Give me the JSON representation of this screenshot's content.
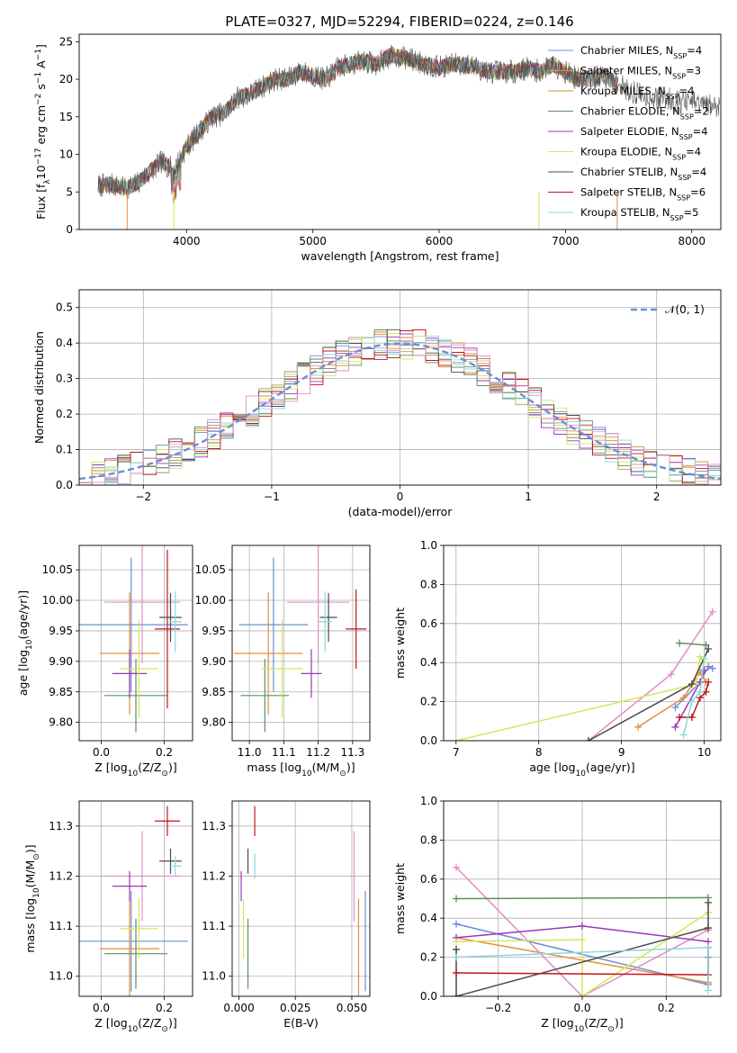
{
  "figure": {
    "title": "PLATE=0327, MJD=52294, FIBERID=0224, z=0.146"
  },
  "colors": {
    "data": "#555555",
    "legend_normal": "#6b8fd6",
    "grid": "#b0b0b0"
  },
  "chart_data": [
    {
      "id": "spectrum",
      "type": "line",
      "xlabel": "wavelength [Angstrom, rest frame]",
      "ylabel_parts": [
        "Flux [f",
        "λ",
        "10",
        "−17",
        " erg cm",
        "−2",
        " s",
        "−1",
        " A",
        "−1",
        "]"
      ],
      "xlim": [
        3150,
        8230
      ],
      "ylim": [
        0,
        26
      ],
      "xticks": [
        4000,
        5000,
        6000,
        7000,
        8000
      ],
      "yticks": [
        0,
        5,
        10,
        15,
        20,
        25
      ],
      "grid": false,
      "legend_position": "upper-right",
      "data_trace": {
        "x": [
          3300,
          3400,
          3500,
          3600,
          3700,
          3800,
          3900,
          4000,
          4100,
          4200,
          4300,
          4400,
          4500,
          4600,
          4700,
          4800,
          4900,
          5000,
          5100,
          5200,
          5300,
          5400,
          5500,
          5600,
          5700,
          5800,
          5900,
          6000,
          6100,
          6200,
          6300,
          6400,
          6500,
          6600,
          6700,
          6800,
          6900,
          7000,
          7100,
          7200,
          7300,
          7400,
          7500,
          7600,
          7700,
          7800,
          7900,
          8000,
          8100,
          8200
        ],
        "y": [
          5.8,
          6.0,
          5.5,
          6.0,
          7.5,
          9.0,
          8.0,
          11.0,
          13.0,
          15.0,
          15.5,
          17.5,
          18.0,
          19.0,
          20.0,
          20.0,
          21.0,
          20.5,
          20.0,
          21.5,
          22.0,
          22.5,
          22.0,
          23.0,
          23.0,
          22.5,
          22.0,
          21.5,
          22.0,
          22.0,
          21.5,
          21.0,
          21.0,
          21.0,
          21.5,
          21.0,
          22.0,
          21.0,
          20.0,
          20.0,
          20.5,
          19.5,
          18.5,
          18.0,
          17.5,
          17.5,
          17.0,
          17.0,
          16.5,
          16.5
        ]
      },
      "series": [
        {
          "name": "Chabrier MILES",
          "nssp": "4",
          "color": "#6b8fd6"
        },
        {
          "name": "Salpeter MILES",
          "nssp": "3",
          "color": "#e68c3c"
        },
        {
          "name": "Kroupa MILES",
          "nssp": "4",
          "color": "#c98f2e"
        },
        {
          "name": "Chabrier ELODIE",
          "nssp": "2",
          "color": "#5e8f5e"
        },
        {
          "name": "Salpeter ELODIE",
          "nssp": "4",
          "color": "#9b37b8"
        },
        {
          "name": "Kroupa ELODIE",
          "nssp": "4",
          "color": "#d4e85a"
        },
        {
          "name": "Chabrier STELIB",
          "nssp": "4",
          "color": "#4a4a4a"
        },
        {
          "name": "Salpeter STELIB",
          "nssp": "6",
          "color": "#c0151a"
        },
        {
          "name": "Kroupa STELIB",
          "nssp": "5",
          "color": "#8bd8dd"
        }
      ]
    },
    {
      "id": "residuals",
      "type": "line",
      "xlabel": "(data-model)/error",
      "ylabel": "Normed distribution",
      "xlim": [
        -2.5,
        2.5
      ],
      "ylim": [
        0,
        0.55
      ],
      "xticks": [
        -2,
        -1,
        0,
        1,
        2
      ],
      "xtick_labels": [
        "−2",
        "−1",
        "0",
        "1",
        "2"
      ],
      "yticks": [
        0.0,
        0.1,
        0.2,
        0.3,
        0.4,
        0.5
      ],
      "ytick_labels": [
        "0.0",
        "0.1",
        "0.2",
        "0.3",
        "0.4",
        "0.5"
      ],
      "grid": true,
      "legend_position": "upper-right",
      "legend_label": "𝒩(0, 1)",
      "bin_width": 0.1
    },
    {
      "id": "age_vs_z",
      "type": "scatter",
      "xlabel_parts": [
        "Z [log",
        "10",
        "(Z/Z",
        "⊙",
        ")]"
      ],
      "ylabel_parts": [
        "age  [log",
        "10",
        "(age/yr)]"
      ],
      "xlim": [
        -0.07,
        0.29
      ],
      "ylim": [
        9.77,
        10.09
      ],
      "xticks": [
        0.0,
        0.2
      ],
      "xtick_labels": [
        "0.0",
        "0.2"
      ],
      "yticks": [
        9.8,
        9.85,
        9.9,
        9.95,
        10.0,
        10.05
      ],
      "ytick_labels": [
        "9.80",
        "9.85",
        "9.90",
        "9.95",
        "10.00",
        "10.05"
      ],
      "grid": true,
      "points": [
        {
          "x": 0.095,
          "y": 9.96,
          "xerr": 0.18,
          "yerr": 0.11,
          "color": "#6b8fd6"
        },
        {
          "x": 0.09,
          "y": 9.913,
          "xerr": 0.095,
          "yerr": 0.1,
          "color": "#e68c3c"
        },
        {
          "x": 0.13,
          "y": 9.997,
          "xerr": 0.12,
          "yerr": 0.1,
          "color": "#e08fc4"
        },
        {
          "x": 0.11,
          "y": 9.844,
          "xerr": 0.1,
          "yerr": 0.06,
          "color": "#5e8f5e"
        },
        {
          "x": 0.09,
          "y": 9.88,
          "xerr": 0.055,
          "yerr": 0.04,
          "color": "#9b37b8"
        },
        {
          "x": 0.12,
          "y": 9.888,
          "xerr": 0.06,
          "yerr": 0.08,
          "color": "#d4e85a"
        },
        {
          "x": 0.22,
          "y": 9.972,
          "xerr": 0.035,
          "yerr": 0.04,
          "color": "#4a4a4a"
        },
        {
          "x": 0.21,
          "y": 9.953,
          "xerr": 0.04,
          "yerr": 0.13,
          "color": "#c0151a"
        },
        {
          "x": 0.235,
          "y": 9.965,
          "xerr": 0.02,
          "yerr": 0.05,
          "color": "#8bd8dd"
        }
      ]
    },
    {
      "id": "age_vs_mass",
      "type": "scatter",
      "xlabel_parts": [
        "mass [log",
        "10",
        "(M/M",
        "⊙",
        ")]"
      ],
      "ylabel": "",
      "xlim": [
        10.95,
        11.35
      ],
      "ylim": [
        9.77,
        10.09
      ],
      "xticks": [
        11.0,
        11.1,
        11.2,
        11.3
      ],
      "xtick_labels": [
        "11.0",
        "11.1",
        "11.2",
        "11.3"
      ],
      "yticks": [
        9.8,
        9.85,
        9.9,
        9.95,
        10.0,
        10.05
      ],
      "ytick_labels": [
        "9.80",
        "9.85",
        "9.90",
        "9.95",
        "10.00",
        "10.05"
      ],
      "grid": true,
      "points": [
        {
          "x": 11.07,
          "y": 9.96,
          "xerr": 0.1,
          "yerr": 0.11,
          "color": "#6b8fd6"
        },
        {
          "x": 11.055,
          "y": 9.913,
          "xerr": 0.1,
          "yerr": 0.1,
          "color": "#e68c3c"
        },
        {
          "x": 11.2,
          "y": 9.997,
          "xerr": 0.09,
          "yerr": 0.1,
          "color": "#e08fc4"
        },
        {
          "x": 11.045,
          "y": 9.844,
          "xerr": 0.07,
          "yerr": 0.06,
          "color": "#5e8f5e"
        },
        {
          "x": 11.18,
          "y": 9.88,
          "xerr": 0.03,
          "yerr": 0.04,
          "color": "#9b37b8"
        },
        {
          "x": 11.095,
          "y": 9.888,
          "xerr": 0.06,
          "yerr": 0.08,
          "color": "#d4e85a"
        },
        {
          "x": 11.23,
          "y": 9.972,
          "xerr": 0.025,
          "yerr": 0.04,
          "color": "#4a4a4a"
        },
        {
          "x": 11.31,
          "y": 9.953,
          "xerr": 0.03,
          "yerr": 0.065,
          "color": "#c0151a"
        },
        {
          "x": 11.22,
          "y": 9.965,
          "xerr": 0.02,
          "yerr": 0.05,
          "color": "#8bd8dd"
        }
      ]
    },
    {
      "id": "weight_vs_age",
      "type": "line",
      "xlabel_parts": [
        "age  [log",
        "10",
        "(age/yr)]"
      ],
      "ylabel": "mass weight",
      "xlim": [
        6.85,
        10.2
      ],
      "ylim": [
        0,
        1
      ],
      "xticks": [
        7,
        8,
        9,
        10
      ],
      "xtick_labels": [
        "7",
        "8",
        "9",
        "10"
      ],
      "yticks": [
        0.0,
        0.2,
        0.4,
        0.6,
        0.8,
        1.0
      ],
      "ytick_labels": [
        "0.0",
        "0.2",
        "0.4",
        "0.6",
        "0.8",
        "1.0"
      ],
      "grid": true,
      "series": [
        {
          "color": "#6b8fd6",
          "x": [
            9.65,
            9.95,
            10.05,
            10.1
          ],
          "y": [
            0.17,
            0.3,
            0.38,
            0.37
          ]
        },
        {
          "color": "#e68c3c",
          "x": [
            9.2,
            9.75,
            9.95,
            10.02
          ],
          "y": [
            0.07,
            0.22,
            0.35,
            0.3
          ]
        },
        {
          "color": "#e08fc4",
          "x": [
            8.6,
            9.6,
            10.1
          ],
          "y": [
            0.0,
            0.34,
            0.66
          ]
        },
        {
          "color": "#5e8f5e",
          "x": [
            9.7,
            10.02
          ],
          "y": [
            0.5,
            0.49
          ]
        },
        {
          "color": "#9b37b8",
          "x": [
            9.65,
            9.95,
            10.0
          ],
          "y": [
            0.07,
            0.3,
            0.36
          ]
        },
        {
          "color": "#d4e85a",
          "x": [
            7.0,
            9.9,
            9.95,
            10.0
          ],
          "y": [
            0.0,
            0.29,
            0.43,
            0.4
          ]
        },
        {
          "color": "#4a4a4a",
          "x": [
            8.6,
            9.85,
            10.05
          ],
          "y": [
            0.0,
            0.29,
            0.47
          ]
        },
        {
          "color": "#c0151a",
          "x": [
            9.7,
            9.85,
            9.95,
            10.02,
            10.05
          ],
          "y": [
            0.12,
            0.12,
            0.22,
            0.25,
            0.3
          ]
        },
        {
          "color": "#8bd8dd",
          "x": [
            9.75,
            9.85,
            9.95,
            10.0
          ],
          "y": [
            0.03,
            0.2,
            0.25,
            0.42
          ]
        }
      ]
    },
    {
      "id": "mass_vs_z",
      "type": "scatter",
      "xlabel_parts": [
        "Z [log",
        "10",
        "(Z/Z",
        "⊙",
        ")]"
      ],
      "ylabel_parts": [
        "mass [log",
        "10",
        "(M/M",
        "⊙",
        ")]"
      ],
      "xlim": [
        -0.07,
        0.29
      ],
      "ylim": [
        10.96,
        11.35
      ],
      "xticks": [
        0.0,
        0.2
      ],
      "xtick_labels": [
        "0.0",
        "0.2"
      ],
      "yticks": [
        11.0,
        11.1,
        11.2,
        11.3
      ],
      "ytick_labels": [
        "11.0",
        "11.1",
        "11.2",
        "11.3"
      ],
      "grid": true,
      "points": [
        {
          "x": 0.095,
          "y": 11.07,
          "xerr": 0.18,
          "yerr": 0.1,
          "color": "#6b8fd6"
        },
        {
          "x": 0.09,
          "y": 11.055,
          "xerr": 0.095,
          "yerr": 0.1,
          "color": "#e68c3c"
        },
        {
          "x": 0.13,
          "y": 11.2,
          "xerr": 0.12,
          "yerr": 0.09,
          "color": "#e08fc4"
        },
        {
          "x": 0.11,
          "y": 11.045,
          "xerr": 0.1,
          "yerr": 0.07,
          "color": "#5e8f5e"
        },
        {
          "x": 0.09,
          "y": 11.18,
          "xerr": 0.055,
          "yerr": 0.03,
          "color": "#9b37b8"
        },
        {
          "x": 0.12,
          "y": 11.095,
          "xerr": 0.06,
          "yerr": 0.06,
          "color": "#d4e85a"
        },
        {
          "x": 0.22,
          "y": 11.23,
          "xerr": 0.035,
          "yerr": 0.025,
          "color": "#4a4a4a"
        },
        {
          "x": 0.21,
          "y": 11.31,
          "xerr": 0.04,
          "yerr": 0.03,
          "color": "#c0151a"
        },
        {
          "x": 0.235,
          "y": 11.22,
          "xerr": 0.02,
          "yerr": 0.02,
          "color": "#8bd8dd"
        }
      ]
    },
    {
      "id": "mass_vs_ebv",
      "type": "scatter",
      "xlabel": "E(B-V)",
      "ylabel": "",
      "xlim": [
        -0.003,
        0.058
      ],
      "ylim": [
        10.96,
        11.35
      ],
      "xticks": [
        0.0,
        0.025,
        0.05
      ],
      "xtick_labels": [
        "0.000",
        "0.025",
        "0.050"
      ],
      "yticks": [
        11.0,
        11.1,
        11.2,
        11.3
      ],
      "ytick_labels": [
        "11.0",
        "11.1",
        "11.2",
        "11.3"
      ],
      "grid": true,
      "points": [
        {
          "x": 0.056,
          "y": 11.07,
          "xerr": 0.0,
          "yerr": 0.1,
          "color": "#6b8fd6"
        },
        {
          "x": 0.053,
          "y": 11.055,
          "xerr": 0.0,
          "yerr": 0.1,
          "color": "#e68c3c"
        },
        {
          "x": 0.051,
          "y": 11.2,
          "xerr": 0.0,
          "yerr": 0.09,
          "color": "#e08fc4"
        },
        {
          "x": 0.004,
          "y": 11.045,
          "xerr": 0.0,
          "yerr": 0.07,
          "color": "#5e8f5e"
        },
        {
          "x": 0.001,
          "y": 11.18,
          "xerr": 0.0,
          "yerr": 0.03,
          "color": "#9b37b8"
        },
        {
          "x": 0.002,
          "y": 11.095,
          "xerr": 0.0,
          "yerr": 0.06,
          "color": "#d4e85a"
        },
        {
          "x": 0.004,
          "y": 11.23,
          "xerr": 0.0,
          "yerr": 0.025,
          "color": "#4a4a4a"
        },
        {
          "x": 0.007,
          "y": 11.31,
          "xerr": 0.0,
          "yerr": 0.03,
          "color": "#c0151a"
        },
        {
          "x": 0.007,
          "y": 11.22,
          "xerr": 0.0,
          "yerr": 0.025,
          "color": "#8bd8dd"
        }
      ]
    },
    {
      "id": "weight_vs_z",
      "type": "line",
      "xlabel_parts": [
        "Z [log",
        "10",
        "(Z/Z",
        "⊙",
        ")]"
      ],
      "ylabel": "mass weight",
      "xlim": [
        -0.33,
        0.33
      ],
      "ylim": [
        0,
        1
      ],
      "xticks": [
        -0.2,
        0.0,
        0.2
      ],
      "xtick_labels": [
        "−0.2",
        "0.0",
        "0.2"
      ],
      "yticks": [
        0.0,
        0.2,
        0.4,
        0.6,
        0.8,
        1.0
      ],
      "ytick_labels": [
        "0.0",
        "0.2",
        "0.4",
        "0.6",
        "0.8",
        "1.0"
      ],
      "grid": true,
      "series": [
        {
          "color": "#6b8fd6",
          "x": [
            -0.3,
            0.3,
            0.3
          ],
          "y": [
            0.37,
            0.06,
            0.2
          ]
        },
        {
          "color": "#e68c3c",
          "x": [
            -0.3,
            0.3
          ],
          "y": [
            0.3,
            0.07
          ]
        },
        {
          "color": "#e08fc4",
          "x": [
            -0.3,
            0.0,
            0.3
          ],
          "y": [
            0.66,
            0.0,
            0.34
          ]
        },
        {
          "color": "#5e8f5e",
          "x": [
            -0.3,
            0.3
          ],
          "y": [
            0.5,
            0.505
          ]
        },
        {
          "color": "#9b37b8",
          "x": [
            -0.3,
            0.0,
            0.3
          ],
          "y": [
            0.3,
            0.36,
            0.28
          ]
        },
        {
          "color": "#d4e85a",
          "x": [
            -0.3,
            0.0,
            0.0,
            0.3
          ],
          "y": [
            0.28,
            0.29,
            0.0,
            0.43
          ]
        },
        {
          "color": "#4a4a4a",
          "x": [
            -0.3,
            -0.3,
            0.3,
            0.3
          ],
          "y": [
            0.24,
            0.0,
            0.35,
            0.48
          ]
        },
        {
          "color": "#c0151a",
          "x": [
            -0.3,
            0.3,
            0.3
          ],
          "y": [
            0.12,
            0.11,
            0.25
          ]
        },
        {
          "color": "#8bd8dd",
          "x": [
            -0.3,
            0.3,
            0.3
          ],
          "y": [
            0.2,
            0.25,
            0.03
          ]
        }
      ]
    }
  ]
}
